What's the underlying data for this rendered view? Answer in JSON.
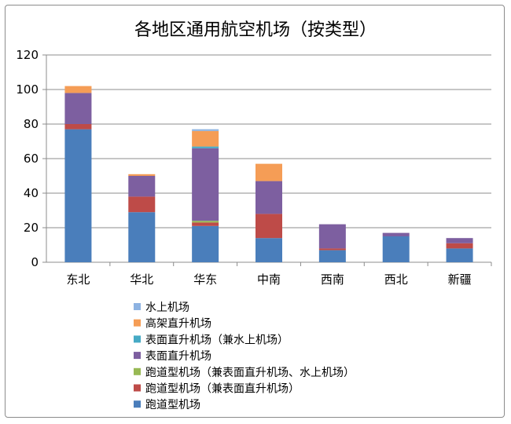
{
  "chart_data": {
    "type": "bar",
    "stacked": true,
    "title": "各地区通用航空机场（按类型）",
    "xlabel": "",
    "ylabel": "",
    "ylim": [
      0,
      120
    ],
    "yticks": [
      0,
      20,
      40,
      60,
      80,
      100,
      120
    ],
    "grid": true,
    "legend_position": "bottom",
    "categories": [
      "东北",
      "华北",
      "华东",
      "中南",
      "西南",
      "西北",
      "新疆"
    ],
    "series": [
      {
        "name": "跑道型机场",
        "color": "#4a7ebb",
        "values": [
          77,
          29,
          21,
          14,
          7,
          15,
          8
        ]
      },
      {
        "name": "跑道型机场（兼表面直升机场）",
        "color": "#be4b48",
        "values": [
          3,
          9,
          2,
          14,
          1,
          0,
          3
        ]
      },
      {
        "name": "跑道型机场（兼表面直升机场、水上机场）",
        "color": "#98b954",
        "values": [
          0,
          0,
          1,
          0,
          0,
          0,
          0
        ]
      },
      {
        "name": "表面直升机场",
        "color": "#7d5fa0",
        "values": [
          18,
          12,
          42,
          19,
          14,
          2,
          3
        ]
      },
      {
        "name": "表面直升机场（兼水上机场）",
        "color": "#46aac5",
        "values": [
          0,
          0,
          1,
          0,
          0,
          0,
          0
        ]
      },
      {
        "name": "高架直升机场",
        "color": "#f59d56",
        "values": [
          4,
          1,
          9,
          10,
          0,
          0,
          0
        ]
      },
      {
        "name": "水上机场",
        "color": "#8db3e2",
        "values": [
          0,
          0,
          1,
          0,
          0,
          0,
          0
        ]
      }
    ]
  }
}
